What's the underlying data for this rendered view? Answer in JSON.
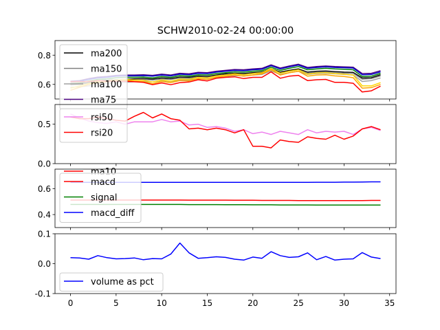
{
  "title": "SCHW2010-02-24 00:00:00",
  "chart_data": [
    {
      "type": "line",
      "x": [
        0,
        1,
        2,
        3,
        4,
        5,
        6,
        7,
        8,
        9,
        10,
        11,
        12,
        13,
        14,
        15,
        16,
        17,
        18,
        19,
        20,
        21,
        22,
        23,
        24,
        25,
        26,
        27,
        28,
        29,
        30,
        31,
        32,
        33,
        34
      ],
      "ylim": [
        0.5,
        0.9
      ],
      "yticks": [
        "0.6",
        "0.8"
      ],
      "legend": "upper-left",
      "series": [
        {
          "name": "ma200",
          "color": "#000000",
          "values": [
            0.6,
            0.605,
            0.612,
            0.624,
            0.628,
            0.632,
            0.634,
            0.638,
            0.64,
            0.636,
            0.644,
            0.64,
            0.65,
            0.648,
            0.656,
            0.654,
            0.664,
            0.672,
            0.676,
            0.674,
            0.68,
            0.684,
            0.708,
            0.684,
            0.696,
            0.706,
            0.684,
            0.69,
            0.692,
            0.688,
            0.684,
            0.682,
            0.644,
            0.646,
            0.666
          ]
        },
        {
          "name": "ma150",
          "color": "#808080",
          "values": [
            0.596,
            0.6,
            0.606,
            0.618,
            0.622,
            0.626,
            0.628,
            0.632,
            0.634,
            0.63,
            0.638,
            0.634,
            0.644,
            0.642,
            0.65,
            0.648,
            0.658,
            0.666,
            0.67,
            0.668,
            0.674,
            0.678,
            0.702,
            0.678,
            0.69,
            0.7,
            0.678,
            0.684,
            0.686,
            0.682,
            0.678,
            0.676,
            0.636,
            0.64,
            0.658
          ]
        },
        {
          "name": "ma100",
          "color": "#a0a0a0",
          "values": [
            0.58,
            0.584,
            0.59,
            0.604,
            0.608,
            0.612,
            0.614,
            0.618,
            0.62,
            0.616,
            0.626,
            0.62,
            0.63,
            0.63,
            0.638,
            0.636,
            0.646,
            0.654,
            0.66,
            0.658,
            0.664,
            0.668,
            0.692,
            0.668,
            0.68,
            0.69,
            0.668,
            0.674,
            0.676,
            0.672,
            0.668,
            0.664,
            0.62,
            0.626,
            0.644
          ]
        },
        {
          "name": "ma75",
          "color": "#4b0082",
          "values": [
            0.622,
            0.626,
            0.64,
            0.65,
            0.654,
            0.662,
            0.664,
            0.664,
            0.666,
            0.662,
            0.67,
            0.664,
            0.676,
            0.672,
            0.682,
            0.68,
            0.69,
            0.696,
            0.702,
            0.7,
            0.706,
            0.71,
            0.734,
            0.712,
            0.726,
            0.738,
            0.716,
            0.722,
            0.726,
            0.722,
            0.72,
            0.718,
            0.674,
            0.676,
            0.694
          ]
        },
        {
          "name": "",
          "color": "#0000cd",
          "values": [
            0.616,
            0.62,
            0.634,
            0.644,
            0.648,
            0.656,
            0.658,
            0.658,
            0.66,
            0.656,
            0.664,
            0.658,
            0.67,
            0.666,
            0.676,
            0.674,
            0.684,
            0.69,
            0.696,
            0.694,
            0.7,
            0.704,
            0.728,
            0.706,
            0.72,
            0.732,
            0.71,
            0.716,
            0.72,
            0.716,
            0.714,
            0.712,
            0.666,
            0.668,
            0.686
          ]
        },
        {
          "name": "",
          "color": "#008000",
          "values": [
            0.606,
            0.61,
            0.624,
            0.634,
            0.638,
            0.646,
            0.648,
            0.648,
            0.65,
            0.644,
            0.654,
            0.648,
            0.66,
            0.656,
            0.666,
            0.664,
            0.674,
            0.68,
            0.686,
            0.684,
            0.69,
            0.694,
            0.718,
            0.696,
            0.71,
            0.722,
            0.7,
            0.706,
            0.71,
            0.706,
            0.704,
            0.7,
            0.654,
            0.656,
            0.676
          ]
        },
        {
          "name": "",
          "color": "#ffd700",
          "values": [
            0.574,
            0.59,
            0.606,
            0.62,
            0.624,
            0.63,
            0.634,
            0.63,
            0.628,
            0.616,
            0.63,
            0.622,
            0.636,
            0.634,
            0.648,
            0.644,
            0.658,
            0.664,
            0.672,
            0.666,
            0.674,
            0.68,
            0.708,
            0.676,
            0.69,
            0.7,
            0.67,
            0.678,
            0.68,
            0.674,
            0.67,
            0.664,
            0.59,
            0.59,
            0.612
          ]
        },
        {
          "name": "",
          "color": "#ffa500",
          "values": [
            0.56,
            0.58,
            0.6,
            0.612,
            0.618,
            0.622,
            0.628,
            0.622,
            0.618,
            0.604,
            0.62,
            0.612,
            0.626,
            0.624,
            0.64,
            0.634,
            0.65,
            0.656,
            0.664,
            0.656,
            0.664,
            0.672,
            0.7,
            0.664,
            0.68,
            0.69,
            0.656,
            0.664,
            0.666,
            0.658,
            0.654,
            0.646,
            0.574,
            0.578,
            0.6
          ]
        },
        {
          "name": "",
          "color": "#ff0000",
          "values": [
            0.618,
            0.618,
            0.62,
            0.626,
            0.622,
            0.622,
            0.622,
            0.618,
            0.614,
            0.598,
            0.61,
            0.598,
            0.612,
            0.616,
            0.632,
            0.624,
            0.642,
            0.648,
            0.652,
            0.64,
            0.648,
            0.648,
            0.686,
            0.642,
            0.656,
            0.662,
            0.626,
            0.632,
            0.634,
            0.614,
            0.614,
            0.608,
            0.548,
            0.556,
            0.588
          ]
        }
      ]
    },
    {
      "type": "line",
      "x": [
        0,
        1,
        2,
        3,
        4,
        5,
        6,
        7,
        8,
        9,
        10,
        11,
        12,
        13,
        14,
        15,
        16,
        17,
        18,
        19,
        20,
        21,
        22,
        23,
        24,
        25,
        26,
        27,
        28,
        29,
        30,
        31,
        32,
        33,
        34
      ],
      "ylim": [
        0.0,
        0.75
      ],
      "yticks": [
        "0.0",
        "0.5"
      ],
      "legend": "upper-left",
      "series": [
        {
          "name": "rsi50",
          "color": "#ee82ee",
          "values": [
            0.63,
            0.58,
            0.54,
            0.52,
            0.51,
            0.53,
            0.5,
            0.53,
            0.53,
            0.53,
            0.56,
            0.53,
            0.54,
            0.49,
            0.5,
            0.46,
            0.47,
            0.45,
            0.41,
            0.43,
            0.38,
            0.4,
            0.37,
            0.41,
            0.39,
            0.37,
            0.43,
            0.39,
            0.41,
            0.4,
            0.41,
            0.37,
            0.44,
            0.46,
            0.42
          ]
        },
        {
          "name": "rsi20",
          "color": "#ff0000",
          "values": [
            0.59,
            0.57,
            0.57,
            0.59,
            0.57,
            0.55,
            0.54,
            0.6,
            0.65,
            0.58,
            0.63,
            0.57,
            0.55,
            0.44,
            0.45,
            0.43,
            0.45,
            0.43,
            0.39,
            0.43,
            0.22,
            0.22,
            0.2,
            0.3,
            0.28,
            0.27,
            0.34,
            0.32,
            0.31,
            0.36,
            0.31,
            0.35,
            0.44,
            0.47,
            0.43
          ]
        }
      ]
    },
    {
      "type": "line",
      "x": [
        0,
        1,
        2,
        3,
        4,
        5,
        6,
        7,
        8,
        9,
        10,
        11,
        12,
        13,
        14,
        15,
        16,
        17,
        18,
        19,
        20,
        21,
        22,
        23,
        24,
        25,
        26,
        27,
        28,
        29,
        30,
        31,
        32,
        33,
        34
      ],
      "ylim": [
        0.3,
        0.75
      ],
      "yticks": [
        "0.4",
        "0.6"
      ],
      "legend": "upper-left",
      "partial_legend_label": "ma10",
      "series": [
        {
          "name": "macd",
          "color": "#ff0000",
          "values": [
            0.512,
            0.512,
            0.512,
            0.512,
            0.512,
            0.512,
            0.512,
            0.512,
            0.512,
            0.512,
            0.512,
            0.512,
            0.512,
            0.511,
            0.511,
            0.511,
            0.511,
            0.511,
            0.51,
            0.51,
            0.51,
            0.509,
            0.509,
            0.509,
            0.509,
            0.508,
            0.508,
            0.508,
            0.508,
            0.508,
            0.508,
            0.508,
            0.508,
            0.509,
            0.509
          ]
        },
        {
          "name": "signal",
          "color": "#008000",
          "values": [
            0.478,
            0.478,
            0.478,
            0.478,
            0.478,
            0.478,
            0.478,
            0.478,
            0.478,
            0.478,
            0.478,
            0.478,
            0.478,
            0.477,
            0.477,
            0.477,
            0.477,
            0.476,
            0.476,
            0.476,
            0.475,
            0.475,
            0.475,
            0.474,
            0.474,
            0.474,
            0.474,
            0.473,
            0.473,
            0.473,
            0.473,
            0.473,
            0.473,
            0.473,
            0.473
          ]
        },
        {
          "name": "macd_diff",
          "color": "#0000ff",
          "values": [
            0.648,
            0.648,
            0.648,
            0.648,
            0.648,
            0.648,
            0.648,
            0.648,
            0.648,
            0.648,
            0.648,
            0.648,
            0.648,
            0.648,
            0.648,
            0.648,
            0.648,
            0.648,
            0.648,
            0.648,
            0.648,
            0.648,
            0.648,
            0.648,
            0.648,
            0.648,
            0.648,
            0.649,
            0.649,
            0.649,
            0.65,
            0.65,
            0.651,
            0.652,
            0.652
          ]
        }
      ]
    },
    {
      "type": "line",
      "x": [
        0,
        1,
        2,
        3,
        4,
        5,
        6,
        7,
        8,
        9,
        10,
        11,
        12,
        13,
        14,
        15,
        16,
        17,
        18,
        19,
        20,
        21,
        22,
        23,
        24,
        25,
        26,
        27,
        28,
        29,
        30,
        31,
        32,
        33,
        34
      ],
      "ylim": [
        -0.1,
        0.1
      ],
      "yticks": [
        "-0.1",
        "0.0",
        "0.1"
      ],
      "xticks": [
        "0",
        "5",
        "10",
        "15",
        "20",
        "25",
        "30",
        "35"
      ],
      "legend": "lower-left",
      "series": [
        {
          "name": "volume as pct",
          "color": "#0000ff",
          "values": [
            0.02,
            0.019,
            0.015,
            0.027,
            0.02,
            0.016,
            0.017,
            0.019,
            0.013,
            0.017,
            0.016,
            0.032,
            0.069,
            0.036,
            0.018,
            0.02,
            0.023,
            0.021,
            0.015,
            0.012,
            0.022,
            0.018,
            0.04,
            0.027,
            0.021,
            0.023,
            0.036,
            0.013,
            0.024,
            0.012,
            0.015,
            0.016,
            0.037,
            0.022,
            0.017
          ]
        }
      ]
    }
  ]
}
